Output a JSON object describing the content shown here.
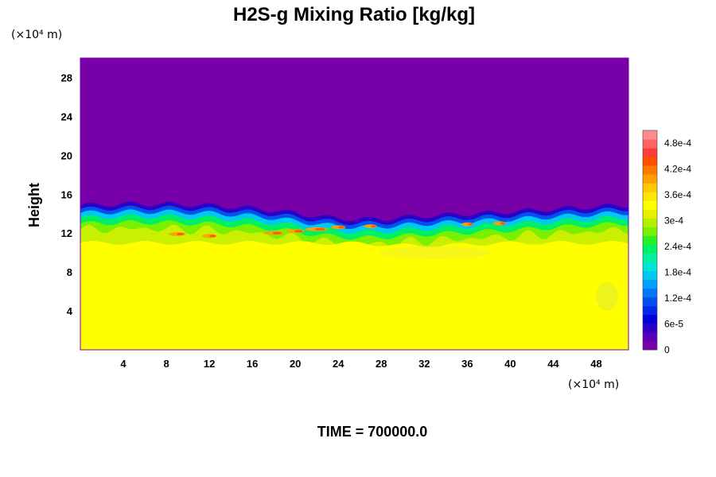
{
  "chart_data": {
    "type": "heatmap",
    "title": "H2S-g Mixing Ratio [kg/kg]",
    "ylabel": "Height",
    "xlabel": "",
    "x_unit": "(×10⁴ m)",
    "y_unit": "(×10⁴ m)",
    "xlim": [
      0,
      51
    ],
    "ylim": [
      0,
      30
    ],
    "x_ticks": [
      "4",
      "8",
      "12",
      "16",
      "20",
      "24",
      "28",
      "32",
      "36",
      "40",
      "44",
      "48"
    ],
    "x_tick_values": [
      4,
      8,
      12,
      16,
      20,
      24,
      28,
      32,
      36,
      40,
      44,
      48
    ],
    "y_ticks": [
      "4",
      "8",
      "12",
      "16",
      "20",
      "24",
      "28"
    ],
    "y_tick_values": [
      4,
      8,
      12,
      16,
      20,
      24,
      28
    ],
    "colorbar": {
      "min": 0,
      "max": 0.00051,
      "labels": [
        "0",
        "6e-5",
        "1.2e-4",
        "1.8e-4",
        "2.4e-4",
        "3e-4",
        "3.6e-4",
        "4.2e-4",
        "4.8e-4"
      ],
      "label_values": [
        0,
        6e-05,
        0.00012,
        0.00018,
        0.00024,
        0.0003,
        0.00036,
        0.00042,
        0.00048
      ]
    },
    "field_description": {
      "upper_region_value": 0,
      "lower_region_value": 0.00036,
      "transition_height_range": [
        11,
        15
      ]
    }
  },
  "footer": {
    "time_label": "TIME = 700000.0"
  }
}
